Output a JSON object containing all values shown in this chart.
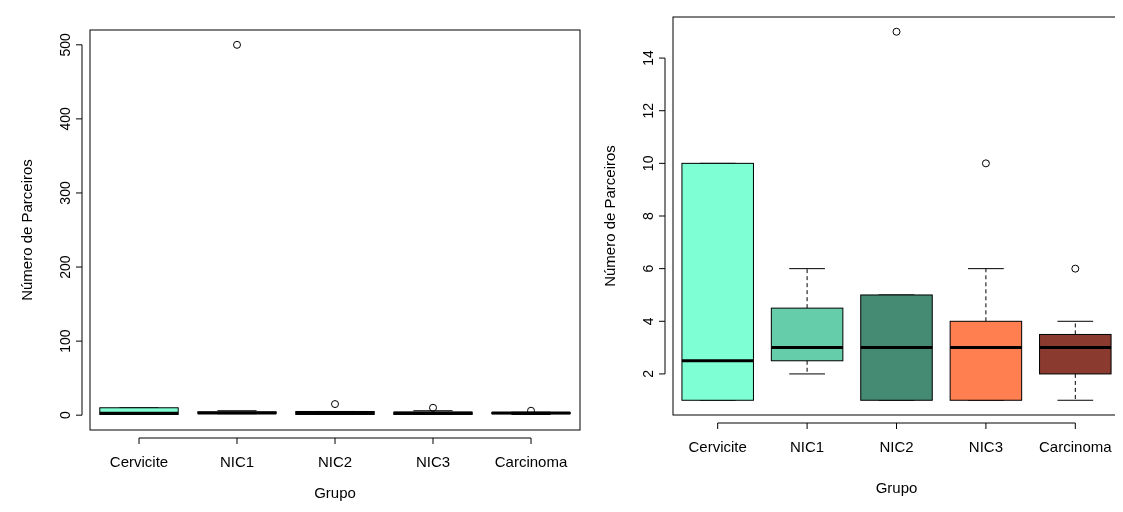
{
  "chart_data": [
    {
      "type": "box",
      "xlabel": "Grupo",
      "ylabel": "Número de Parceiros",
      "categories": [
        "Cervicite",
        "NIC1",
        "NIC2",
        "NIC3",
        "Carcinoma"
      ],
      "colors": [
        "#7fffd4",
        "#66cdaa",
        "#458b74",
        "#ff7f50",
        "#8b3a2f"
      ],
      "ylim": [
        -20,
        520
      ],
      "yticks": [
        0,
        100,
        200,
        300,
        400,
        500
      ],
      "grid": false,
      "boxes": [
        {
          "low": 1,
          "q1": 1,
          "median": 2.5,
          "q3": 10,
          "high": 10
        },
        {
          "low": 2,
          "q1": 2.5,
          "median": 3,
          "q3": 4.5,
          "high": 6,
          "outliers": [
            500
          ]
        },
        {
          "low": 1,
          "q1": 1,
          "median": 3,
          "q3": 5,
          "high": 5,
          "outliers": [
            15
          ]
        },
        {
          "low": 1,
          "q1": 1,
          "median": 3,
          "q3": 4,
          "high": 6,
          "outliers": [
            10
          ]
        },
        {
          "low": 1,
          "q1": 2,
          "median": 3,
          "q3": 3.5,
          "high": 4,
          "outliers": [
            6
          ]
        }
      ]
    },
    {
      "type": "box",
      "xlabel": "Grupo",
      "ylabel": "Número de Parceiros",
      "categories": [
        "Cervicite",
        "NIC1",
        "NIC2",
        "NIC3",
        "Carcinoma"
      ],
      "colors": [
        "#7fffd4",
        "#66cdaa",
        "#458b74",
        "#ff7f50",
        "#8b3a2f"
      ],
      "ylim": [
        0.44,
        15.56
      ],
      "yticks": [
        2,
        4,
        6,
        8,
        10,
        12,
        14
      ],
      "grid": false,
      "boxes": [
        {
          "low": 1,
          "q1": 1,
          "median": 2.5,
          "q3": 10,
          "high": 10
        },
        {
          "low": 2,
          "q1": 2.5,
          "median": 3,
          "q3": 4.5,
          "high": 6
        },
        {
          "low": 1,
          "q1": 1,
          "median": 3,
          "q3": 5,
          "high": 5,
          "outliers": [
            15
          ]
        },
        {
          "low": 1,
          "q1": 1,
          "median": 3,
          "q3": 4,
          "high": 6,
          "outliers": [
            10
          ]
        },
        {
          "low": 1,
          "q1": 2,
          "median": 3,
          "q3": 3.5,
          "high": 4,
          "outliers": [
            6
          ]
        }
      ]
    }
  ]
}
